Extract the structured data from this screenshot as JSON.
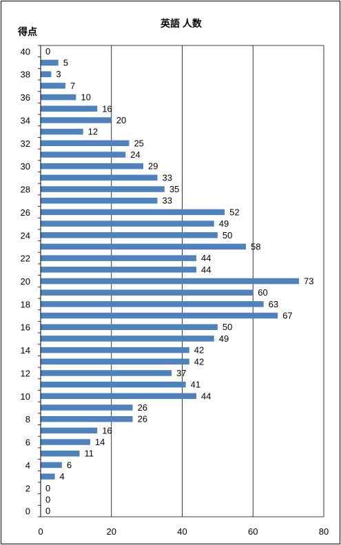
{
  "chart_data": {
    "type": "bar",
    "orientation": "horizontal",
    "title": "英語 人数",
    "ylabel": "得点",
    "xlabel": "",
    "xlim": [
      0,
      80
    ],
    "x_ticks": [
      0,
      20,
      40,
      60,
      80
    ],
    "y_tick_labels": [
      "40",
      "38",
      "36",
      "34",
      "32",
      "30",
      "28",
      "26",
      "24",
      "22",
      "20",
      "18",
      "16",
      "14",
      "12",
      "10",
      "8",
      "6",
      "4",
      "2",
      "0"
    ],
    "categories": [
      40,
      39,
      38,
      37,
      36,
      35,
      34,
      33,
      32,
      31,
      30,
      29,
      28,
      27,
      26,
      25,
      24,
      23,
      22,
      21,
      20,
      19,
      18,
      17,
      16,
      15,
      14,
      13,
      12,
      11,
      10,
      9,
      8,
      7,
      6,
      5,
      4,
      3,
      2,
      1,
      0
    ],
    "values": [
      0,
      5,
      3,
      7,
      10,
      16,
      20,
      12,
      25,
      24,
      29,
      33,
      35,
      33,
      52,
      49,
      50,
      58,
      44,
      44,
      73,
      60,
      63,
      67,
      50,
      49,
      42,
      42,
      37,
      41,
      44,
      26,
      26,
      16,
      14,
      11,
      6,
      4,
      0,
      0,
      0
    ],
    "bar_color": "#4f81bd",
    "grid": true,
    "legend": "none"
  }
}
